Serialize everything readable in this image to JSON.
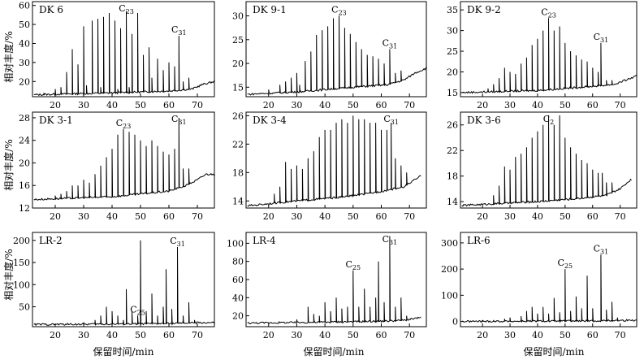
{
  "chart_data": {
    "type": "line",
    "ylabel": "相对丰度/%",
    "xlabel": "保留时间/min",
    "xlim": [
      12,
      76
    ],
    "xticks": [
      20,
      30,
      40,
      50,
      60,
      70
    ],
    "panels": [
      {
        "name": "DK 6",
        "ylim": [
          12,
          62
        ],
        "yticks": [
          10,
          20,
          30,
          40,
          50,
          60
        ],
        "baseline": [
          [
            12,
            13
          ],
          [
            40,
            14
          ],
          [
            60,
            15
          ],
          [
            68,
            16
          ],
          [
            72,
            18.5
          ],
          [
            76,
            20
          ]
        ],
        "peaks": [
          [
            16,
            14
          ],
          [
            20,
            16
          ],
          [
            22,
            17
          ],
          [
            24,
            25
          ],
          [
            26,
            37
          ],
          [
            28,
            29
          ],
          [
            30,
            49
          ],
          [
            31,
            18
          ],
          [
            33,
            52
          ],
          [
            35,
            53
          ],
          [
            36,
            17
          ],
          [
            37,
            54
          ],
          [
            39,
            56
          ],
          [
            41,
            52
          ],
          [
            42,
            16
          ],
          [
            43,
            48
          ],
          [
            45,
            57
          ],
          [
            46,
            17
          ],
          [
            47,
            45
          ],
          [
            49,
            56
          ],
          [
            51,
            34
          ],
          [
            53,
            38
          ],
          [
            54,
            22
          ],
          [
            56,
            32
          ],
          [
            58,
            26
          ],
          [
            60,
            30
          ],
          [
            62,
            28
          ],
          [
            63.5,
            44
          ],
          [
            65,
            20
          ],
          [
            67,
            22
          ]
        ],
        "annotations": [
          {
            "text": "C23",
            "x": 45
          },
          {
            "text": "C31",
            "x": 63.5
          }
        ]
      },
      {
        "name": "DK 9-1",
        "ylim": [
          13,
          33
        ],
        "yticks": [
          15,
          20,
          25,
          30
        ],
        "baseline": [
          [
            12,
            13.5
          ],
          [
            30,
            14
          ],
          [
            50,
            15
          ],
          [
            62,
            15.5
          ],
          [
            68,
            16.5
          ],
          [
            72,
            18
          ],
          [
            76,
            19
          ]
        ],
        "peaks": [
          [
            20,
            14.5
          ],
          [
            24,
            15.5
          ],
          [
            26,
            16.2
          ],
          [
            28,
            17
          ],
          [
            30,
            18
          ],
          [
            31,
            15.5
          ],
          [
            33,
            20.5
          ],
          [
            35,
            22.5
          ],
          [
            37,
            26
          ],
          [
            39,
            27
          ],
          [
            41,
            27.8
          ],
          [
            43,
            29.5
          ],
          [
            45,
            30
          ],
          [
            47,
            27.5
          ],
          [
            49,
            26.2
          ],
          [
            51,
            24.5
          ],
          [
            53,
            23
          ],
          [
            55,
            21.8
          ],
          [
            57,
            21.5
          ],
          [
            59,
            21
          ],
          [
            61,
            20
          ],
          [
            63,
            23
          ],
          [
            65,
            18
          ],
          [
            67,
            18.5
          ]
        ],
        "annotations": [
          {
            "text": "C23",
            "x": 45
          },
          {
            "text": "C31",
            "x": 63
          }
        ]
      },
      {
        "name": "DK 9-2",
        "ylim": [
          14,
          37
        ],
        "yticks": [
          15,
          20,
          25,
          30,
          35
        ],
        "baseline": [
          [
            12,
            15
          ],
          [
            40,
            15.5
          ],
          [
            60,
            16.5
          ],
          [
            68,
            17
          ],
          [
            72,
            18
          ],
          [
            76,
            19
          ]
        ],
        "peaks": [
          [
            22,
            16
          ],
          [
            24,
            17
          ],
          [
            26,
            18.5
          ],
          [
            28,
            21
          ],
          [
            30,
            20
          ],
          [
            32,
            19.5
          ],
          [
            34,
            22
          ],
          [
            36,
            23.5
          ],
          [
            38,
            26.5
          ],
          [
            40,
            28
          ],
          [
            42,
            30
          ],
          [
            44,
            33
          ],
          [
            46,
            30
          ],
          [
            48,
            31
          ],
          [
            50,
            27
          ],
          [
            52,
            25
          ],
          [
            54,
            24
          ],
          [
            56,
            23
          ],
          [
            58,
            22.5
          ],
          [
            60,
            21
          ],
          [
            62,
            20
          ],
          [
            63,
            27
          ],
          [
            65,
            18
          ],
          [
            67,
            18
          ]
        ],
        "annotations": [
          {
            "text": "C23",
            "x": 44
          },
          {
            "text": "C31",
            "x": 63
          }
        ]
      },
      {
        "name": "DK 3-1",
        "ylim": [
          12,
          29
        ],
        "yticks": [
          12,
          16,
          20,
          24,
          28
        ],
        "baseline": [
          [
            12,
            13.5
          ],
          [
            40,
            14
          ],
          [
            60,
            15
          ],
          [
            66,
            16
          ],
          [
            70,
            17
          ],
          [
            73,
            18
          ],
          [
            76,
            18
          ]
        ],
        "peaks": [
          [
            20,
            14.2
          ],
          [
            22,
            14.5
          ],
          [
            24,
            15
          ],
          [
            26,
            16
          ],
          [
            28,
            16
          ],
          [
            30,
            17
          ],
          [
            32,
            16.5
          ],
          [
            34,
            18
          ],
          [
            36,
            19.5
          ],
          [
            38,
            21
          ],
          [
            40,
            22.5
          ],
          [
            42,
            25
          ],
          [
            44,
            26
          ],
          [
            46,
            25.5
          ],
          [
            48,
            25
          ],
          [
            50,
            24
          ],
          [
            52,
            23
          ],
          [
            54,
            24
          ],
          [
            56,
            23
          ],
          [
            58,
            22
          ],
          [
            60,
            21.5
          ],
          [
            62,
            22.5
          ],
          [
            63.5,
            28
          ],
          [
            65,
            19
          ],
          [
            67,
            19
          ]
        ],
        "annotations": [
          {
            "text": "C23",
            "x": 44
          },
          {
            "text": "C31",
            "x": 63.5
          }
        ]
      },
      {
        "name": "DK 3-4",
        "ylim": [
          13,
          26.5
        ],
        "yticks": [
          14,
          18,
          22,
          26
        ],
        "baseline": [
          [
            12,
            13.3
          ],
          [
            30,
            14
          ],
          [
            45,
            14.5
          ],
          [
            55,
            15
          ],
          [
            62,
            15.5
          ],
          [
            68,
            16
          ],
          [
            72,
            17
          ],
          [
            74,
            17.5
          ]
        ],
        "peaks": [
          [
            22,
            15
          ],
          [
            24,
            16
          ],
          [
            26,
            19.5
          ],
          [
            28,
            18.5
          ],
          [
            30,
            19
          ],
          [
            32,
            18.5
          ],
          [
            34,
            20
          ],
          [
            36,
            21
          ],
          [
            38,
            23
          ],
          [
            40,
            24
          ],
          [
            42,
            24
          ],
          [
            44,
            25
          ],
          [
            46,
            25.5
          ],
          [
            48,
            25
          ],
          [
            50,
            26
          ],
          [
            52,
            25.5
          ],
          [
            54,
            25.5
          ],
          [
            56,
            25
          ],
          [
            58,
            25
          ],
          [
            60,
            24
          ],
          [
            62,
            24
          ],
          [
            63.5,
            25
          ],
          [
            65,
            20
          ],
          [
            67,
            19
          ],
          [
            69,
            18
          ]
        ],
        "annotations": [
          {
            "text": "C31",
            "x": 63.5
          }
        ]
      },
      {
        "name": "DK 3-6",
        "ylim": [
          13,
          28
        ],
        "yticks": [
          14,
          18,
          22,
          26
        ],
        "baseline": [
          [
            12,
            13.4
          ],
          [
            40,
            14
          ],
          [
            55,
            14.5
          ],
          [
            65,
            15
          ],
          [
            70,
            16
          ],
          [
            74,
            17.5
          ]
        ],
        "peaks": [
          [
            24,
            15
          ],
          [
            26,
            16.5
          ],
          [
            28,
            19.5
          ],
          [
            30,
            19
          ],
          [
            32,
            21
          ],
          [
            34,
            21.5
          ],
          [
            36,
            22.5
          ],
          [
            38,
            24
          ],
          [
            40,
            25
          ],
          [
            42,
            26
          ],
          [
            44,
            27.5
          ],
          [
            46,
            26
          ],
          [
            48,
            27.5
          ],
          [
            50,
            24
          ],
          [
            52,
            22.5
          ],
          [
            54,
            21.5
          ],
          [
            56,
            20.5
          ],
          [
            58,
            20
          ],
          [
            60,
            19
          ],
          [
            62,
            18.5
          ],
          [
            63.5,
            18.5
          ],
          [
            65,
            17
          ],
          [
            67,
            17
          ]
        ],
        "annotations": [
          {
            "text": "C2",
            "x": 44
          }
        ]
      },
      {
        "name": "LR-2",
        "ylim": [
          5,
          218
        ],
        "yticks": [
          50,
          100,
          150,
          200
        ],
        "baseline": [
          [
            12,
            10
          ],
          [
            40,
            11
          ],
          [
            60,
            12
          ],
          [
            70,
            14
          ],
          [
            76,
            14
          ]
        ],
        "peaks": [
          [
            30,
            15
          ],
          [
            34,
            20
          ],
          [
            36,
            30
          ],
          [
            38,
            50
          ],
          [
            40,
            40
          ],
          [
            42,
            30
          ],
          [
            44,
            20
          ],
          [
            45,
            90
          ],
          [
            47,
            40
          ],
          [
            49,
            30
          ],
          [
            50,
            200
          ],
          [
            52,
            40
          ],
          [
            54,
            80
          ],
          [
            56,
            30
          ],
          [
            58,
            50
          ],
          [
            59,
            135
          ],
          [
            61,
            45
          ],
          [
            63,
            185
          ],
          [
            65,
            30
          ],
          [
            67,
            60
          ],
          [
            69,
            20
          ]
        ],
        "annotations": [
          {
            "text": "C25",
            "x": 49
          },
          {
            "text": "C31",
            "x": 63
          }
        ]
      },
      {
        "name": "LR-4",
        "ylim": [
          8,
          112
        ],
        "yticks": [
          20,
          40,
          60,
          80,
          100
        ],
        "baseline": [
          [
            12,
            12
          ],
          [
            40,
            13
          ],
          [
            60,
            14
          ],
          [
            68,
            15
          ],
          [
            72,
            17
          ],
          [
            74,
            18
          ]
        ],
        "peaks": [
          [
            30,
            16
          ],
          [
            34,
            30
          ],
          [
            36,
            22
          ],
          [
            38,
            20
          ],
          [
            40,
            35
          ],
          [
            42,
            25
          ],
          [
            44,
            40
          ],
          [
            46,
            28
          ],
          [
            48,
            30
          ],
          [
            50,
            70
          ],
          [
            52,
            30
          ],
          [
            54,
            50
          ],
          [
            56,
            30
          ],
          [
            58,
            40
          ],
          [
            59,
            80
          ],
          [
            61,
            35
          ],
          [
            63,
            108
          ],
          [
            65,
            30
          ],
          [
            67,
            40
          ],
          [
            69,
            20
          ]
        ],
        "annotations": [
          {
            "text": "C25",
            "x": 50
          },
          {
            "text": "C31",
            "x": 63
          }
        ]
      },
      {
        "name": "LR-6",
        "ylim": [
          -20,
          340
        ],
        "yticks": [
          0,
          100,
          200,
          300
        ],
        "baseline": [
          [
            12,
            0
          ],
          [
            60,
            2
          ],
          [
            76,
            5
          ]
        ],
        "peaks": [
          [
            20,
            5
          ],
          [
            24,
            5
          ],
          [
            28,
            10
          ],
          [
            30,
            15
          ],
          [
            34,
            20
          ],
          [
            36,
            40
          ],
          [
            38,
            55
          ],
          [
            40,
            30
          ],
          [
            42,
            55
          ],
          [
            44,
            30
          ],
          [
            46,
            90
          ],
          [
            48,
            35
          ],
          [
            50,
            200
          ],
          [
            52,
            40
          ],
          [
            54,
            95
          ],
          [
            56,
            50
          ],
          [
            58,
            175
          ],
          [
            60,
            50
          ],
          [
            63,
            255
          ],
          [
            65,
            45
          ],
          [
            67,
            75
          ],
          [
            69,
            15
          ]
        ],
        "annotations": [
          {
            "text": "C25",
            "x": 50
          },
          {
            "text": "C31",
            "x": 63
          }
        ]
      }
    ]
  }
}
